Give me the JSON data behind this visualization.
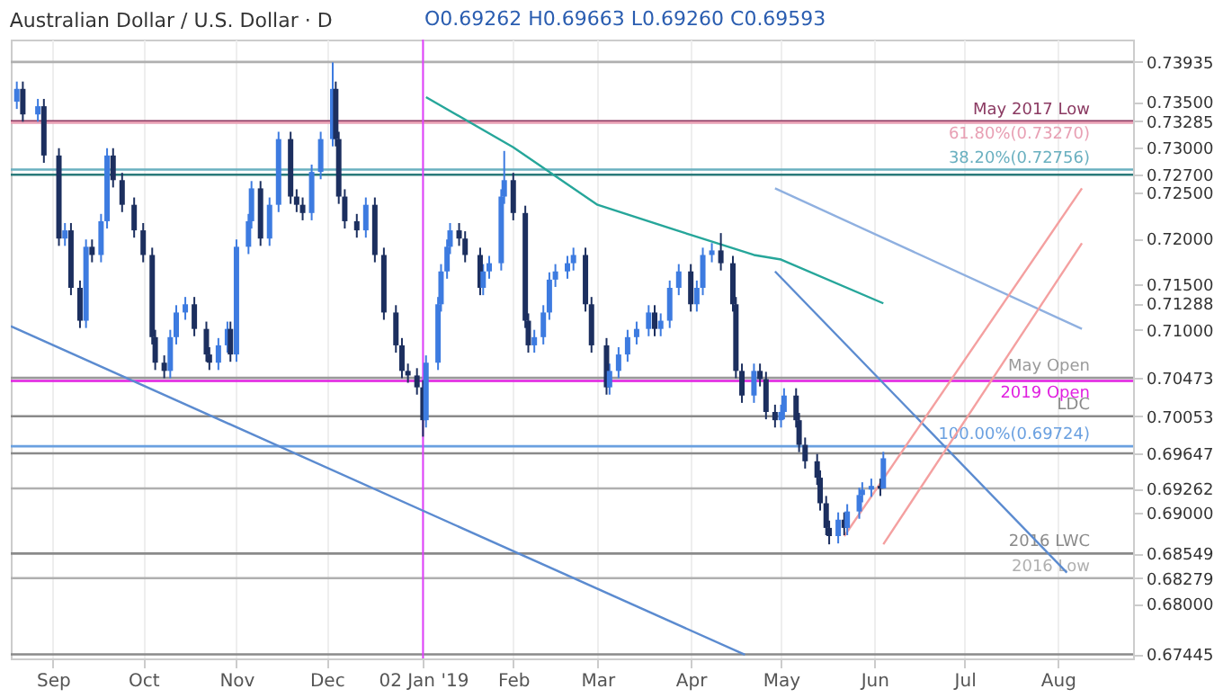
{
  "chart_data": {
    "type": "candlestick",
    "title": "Australian Dollar / U.S. Dollar · D",
    "annotations": [
      "O0.69262 H0.69663 L0.69260 C0.69593"
    ],
    "xlim": [
      "2018-08-18",
      "2019-08-26"
    ],
    "xticks": [
      {
        "value": "2018-09-01",
        "label": "Sep"
      },
      {
        "value": "2018-10-01",
        "label": "Oct"
      },
      {
        "value": "2018-11-01",
        "label": "Nov"
      },
      {
        "value": "2018-12-01",
        "label": "Dec"
      },
      {
        "value": "2019-01-02",
        "label": "02 Jan '19"
      },
      {
        "value": "2019-02-01",
        "label": "Feb"
      },
      {
        "value": "2019-03-01",
        "label": "Mar"
      },
      {
        "value": "2019-04-01",
        "label": "Apr"
      },
      {
        "value": "2019-05-01",
        "label": "May"
      },
      {
        "value": "2019-06-01",
        "label": "Jun"
      },
      {
        "value": "2019-07-01",
        "label": "Jul"
      },
      {
        "value": "2019-08-01",
        "label": "Aug"
      }
    ],
    "ylim": [
      0.674,
      0.7418
    ],
    "yticks": [
      {
        "value": 0.73935,
        "label": "0.73935"
      },
      {
        "value": 0.735,
        "label": "0.73500"
      },
      {
        "value": 0.73285,
        "label": "0.73285"
      },
      {
        "value": 0.73,
        "label": "0.73000"
      },
      {
        "value": 0.727,
        "label": "0.72700"
      },
      {
        "value": 0.725,
        "label": "0.72500"
      },
      {
        "value": 0.72,
        "label": "0.72000"
      },
      {
        "value": 0.715,
        "label": "0.71500"
      },
      {
        "value": 0.71288,
        "label": "0.71288"
      },
      {
        "value": 0.71,
        "label": "0.71000"
      },
      {
        "value": 0.70473,
        "label": "0.70473"
      },
      {
        "value": 0.70053,
        "label": "0.70053"
      },
      {
        "value": 0.69647,
        "label": "0.69647"
      },
      {
        "value": 0.69262,
        "label": "0.69262"
      },
      {
        "value": 0.69,
        "label": "0.69000"
      },
      {
        "value": 0.68549,
        "label": "0.68549"
      },
      {
        "value": 0.68279,
        "label": "0.68279"
      },
      {
        "value": 0.68,
        "label": "0.68000"
      },
      {
        "value": 0.67445,
        "label": "0.67445"
      }
    ],
    "grid": "x",
    "x": [
      "2018-08-20",
      "2018-08-22",
      "2018-08-27",
      "2018-08-29",
      "2018-09-03",
      "2018-09-05",
      "2018-09-07",
      "2018-09-10",
      "2018-09-12",
      "2018-09-14",
      "2018-09-17",
      "2018-09-19",
      "2018-09-21",
      "2018-09-24",
      "2018-09-28",
      "2018-10-01",
      "2018-10-04",
      "2018-10-05",
      "2018-10-08",
      "2018-10-10",
      "2018-10-12",
      "2018-10-15",
      "2018-10-18",
      "2018-10-22",
      "2018-10-23",
      "2018-10-26",
      "2018-10-29",
      "2018-10-30",
      "2018-11-01",
      "2018-11-05",
      "2018-11-06",
      "2018-11-09",
      "2018-11-12",
      "2018-11-15",
      "2018-11-19",
      "2018-11-21",
      "2018-11-23",
      "2018-11-26",
      "2018-11-29",
      "2018-12-03",
      "2018-12-04",
      "2018-12-05",
      "2018-12-07",
      "2018-12-11",
      "2018-12-14",
      "2018-12-17",
      "2018-12-20",
      "2018-12-24",
      "2018-12-26",
      "2018-12-28",
      "2018-12-31",
      "2019-01-02",
      "2019-01-03",
      "2019-01-07",
      "2019-01-08",
      "2019-01-10",
      "2019-01-11",
      "2019-01-14",
      "2019-01-16",
      "2019-01-21",
      "2019-01-22",
      "2019-01-24",
      "2019-01-28",
      "2019-01-29",
      "2019-02-01",
      "2019-02-05",
      "2019-02-06",
      "2019-02-08",
      "2019-02-11",
      "2019-02-13",
      "2019-02-15",
      "2019-02-19",
      "2019-02-21",
      "2019-02-25",
      "2019-02-27",
      "2019-03-04",
      "2019-03-05",
      "2019-03-08",
      "2019-03-11",
      "2019-03-14",
      "2019-03-18",
      "2019-03-20",
      "2019-03-22",
      "2019-03-25",
      "2019-03-28",
      "2019-04-01",
      "2019-04-03",
      "2019-04-05",
      "2019-04-08",
      "2019-04-11",
      "2019-04-15",
      "2019-04-16",
      "2019-04-18",
      "2019-04-22",
      "2019-04-24",
      "2019-04-26",
      "2019-04-29",
      "2019-05-01",
      "2019-05-02",
      "2019-05-06",
      "2019-05-07",
      "2019-05-09",
      "2019-05-13",
      "2019-05-14",
      "2019-05-16",
      "2019-05-17",
      "2019-05-20",
      "2019-05-22",
      "2019-05-23",
      "2019-05-27",
      "2019-05-28",
      "2019-05-31",
      "2019-06-03",
      "2019-06-04"
    ],
    "ohlc": [
      [
        0.735,
        0.7372,
        0.7342,
        0.7364
      ],
      [
        0.7364,
        0.7372,
        0.7328,
        0.7336
      ],
      [
        0.7336,
        0.7353,
        0.7328,
        0.7345
      ],
      [
        0.7345,
        0.7353,
        0.7283,
        0.7291
      ],
      [
        0.7291,
        0.7299,
        0.7192,
        0.72
      ],
      [
        0.72,
        0.7217,
        0.7192,
        0.7209
      ],
      [
        0.7209,
        0.7217,
        0.7138,
        0.7146
      ],
      [
        0.7146,
        0.7154,
        0.7102,
        0.711
      ],
      [
        0.711,
        0.7199,
        0.7102,
        0.7191
      ],
      [
        0.7191,
        0.7199,
        0.7174,
        0.7182
      ],
      [
        0.7182,
        0.7227,
        0.7174,
        0.7219
      ],
      [
        0.7219,
        0.7299,
        0.7211,
        0.7291
      ],
      [
        0.7291,
        0.7299,
        0.7256,
        0.7264
      ],
      [
        0.7264,
        0.7272,
        0.7229,
        0.7237
      ],
      [
        0.7237,
        0.7245,
        0.7201,
        0.7209
      ],
      [
        0.7209,
        0.7217,
        0.7174,
        0.7182
      ],
      [
        0.7182,
        0.719,
        0.7084,
        0.7092
      ],
      [
        0.7092,
        0.71,
        0.7056,
        0.7064
      ],
      [
        0.7064,
        0.7072,
        0.7047,
        0.7055
      ],
      [
        0.7055,
        0.71,
        0.7047,
        0.7092
      ],
      [
        0.7092,
        0.7127,
        0.7084,
        0.7119
      ],
      [
        0.7119,
        0.7136,
        0.7111,
        0.7128
      ],
      [
        0.7128,
        0.7136,
        0.7093,
        0.7101
      ],
      [
        0.7101,
        0.7109,
        0.7065,
        0.7073
      ],
      [
        0.7073,
        0.7081,
        0.7056,
        0.7064
      ],
      [
        0.7064,
        0.7091,
        0.7056,
        0.7083
      ],
      [
        0.7083,
        0.7109,
        0.7075,
        0.7101
      ],
      [
        0.7101,
        0.7109,
        0.7065,
        0.7073
      ],
      [
        0.7073,
        0.7199,
        0.7065,
        0.7191
      ],
      [
        0.7191,
        0.7227,
        0.7183,
        0.7219
      ],
      [
        0.7219,
        0.7263,
        0.7211,
        0.7255
      ],
      [
        0.7255,
        0.7263,
        0.7192,
        0.72
      ],
      [
        0.72,
        0.7245,
        0.7192,
        0.7237
      ],
      [
        0.7237,
        0.7317,
        0.7229,
        0.7309
      ],
      [
        0.7309,
        0.7317,
        0.7238,
        0.7246
      ],
      [
        0.7246,
        0.7254,
        0.7229,
        0.7237
      ],
      [
        0.7237,
        0.7245,
        0.722,
        0.7228
      ],
      [
        0.7228,
        0.7281,
        0.722,
        0.7273
      ],
      [
        0.7273,
        0.7317,
        0.7265,
        0.7309
      ],
      [
        0.7309,
        0.7393,
        0.7301,
        0.7364
      ],
      [
        0.7364,
        0.7372,
        0.7301,
        0.7309
      ],
      [
        0.7309,
        0.7317,
        0.7238,
        0.7246
      ],
      [
        0.7246,
        0.7254,
        0.7211,
        0.7219
      ],
      [
        0.7219,
        0.7227,
        0.7201,
        0.7209
      ],
      [
        0.7209,
        0.7245,
        0.7201,
        0.7237
      ],
      [
        0.7237,
        0.7245,
        0.7174,
        0.7182
      ],
      [
        0.7182,
        0.719,
        0.7111,
        0.7119
      ],
      [
        0.7119,
        0.7127,
        0.7075,
        0.7083
      ],
      [
        0.7083,
        0.7091,
        0.7047,
        0.7055
      ],
      [
        0.7055,
        0.7063,
        0.7042,
        0.705
      ],
      [
        0.705,
        0.7058,
        0.7029,
        0.7037
      ],
      [
        0.7037,
        0.7045,
        0.6983,
        0.7001
      ],
      [
        0.7001,
        0.7072,
        0.6993,
        0.7064
      ],
      [
        0.7064,
        0.7136,
        0.7056,
        0.7128
      ],
      [
        0.7128,
        0.7172,
        0.712,
        0.7164
      ],
      [
        0.7164,
        0.7199,
        0.7156,
        0.7191
      ],
      [
        0.7191,
        0.7217,
        0.7183,
        0.7209
      ],
      [
        0.7209,
        0.7217,
        0.7192,
        0.72
      ],
      [
        0.72,
        0.7208,
        0.7174,
        0.7182
      ],
      [
        0.7182,
        0.719,
        0.7138,
        0.7146
      ],
      [
        0.7146,
        0.7172,
        0.7138,
        0.7164
      ],
      [
        0.7164,
        0.7181,
        0.7156,
        0.7173
      ],
      [
        0.7173,
        0.7254,
        0.7165,
        0.7246
      ],
      [
        0.7246,
        0.7296,
        0.7238,
        0.7264
      ],
      [
        0.7264,
        0.7272,
        0.722,
        0.7228
      ],
      [
        0.7228,
        0.7236,
        0.7102,
        0.711
      ],
      [
        0.711,
        0.7118,
        0.7075,
        0.7083
      ],
      [
        0.7083,
        0.71,
        0.7075,
        0.7092
      ],
      [
        0.7092,
        0.7127,
        0.7084,
        0.7119
      ],
      [
        0.7119,
        0.7163,
        0.7111,
        0.7155
      ],
      [
        0.7155,
        0.7172,
        0.7147,
        0.7164
      ],
      [
        0.7164,
        0.7181,
        0.7156,
        0.7173
      ],
      [
        0.7173,
        0.719,
        0.7165,
        0.7182
      ],
      [
        0.7182,
        0.719,
        0.712,
        0.7128
      ],
      [
        0.7128,
        0.7136,
        0.7075,
        0.7083
      ],
      [
        0.7083,
        0.7091,
        0.7029,
        0.7037
      ],
      [
        0.7037,
        0.7063,
        0.7029,
        0.7055
      ],
      [
        0.7055,
        0.7081,
        0.7047,
        0.7073
      ],
      [
        0.7073,
        0.71,
        0.7065,
        0.7092
      ],
      [
        0.7092,
        0.7109,
        0.7084,
        0.7101
      ],
      [
        0.7101,
        0.7127,
        0.7093,
        0.7119
      ],
      [
        0.7119,
        0.7127,
        0.7093,
        0.7101
      ],
      [
        0.7101,
        0.7118,
        0.7093,
        0.711
      ],
      [
        0.711,
        0.7154,
        0.7102,
        0.7146
      ],
      [
        0.7146,
        0.7172,
        0.7138,
        0.7164
      ],
      [
        0.7164,
        0.7172,
        0.712,
        0.7128
      ],
      [
        0.7128,
        0.7154,
        0.712,
        0.7146
      ],
      [
        0.7146,
        0.719,
        0.7138,
        0.7182
      ],
      [
        0.7182,
        0.7195,
        0.7174,
        0.7187
      ],
      [
        0.7187,
        0.7206,
        0.7165,
        0.7173
      ],
      [
        0.7173,
        0.7181,
        0.712,
        0.7128
      ],
      [
        0.7128,
        0.7136,
        0.7047,
        0.7055
      ],
      [
        0.7055,
        0.7063,
        0.702,
        0.7028
      ],
      [
        0.7028,
        0.7063,
        0.702,
        0.7055
      ],
      [
        0.7055,
        0.7063,
        0.7038,
        0.7046
      ],
      [
        0.7046,
        0.7054,
        0.7002,
        0.701
      ],
      [
        0.701,
        0.7018,
        0.6993,
        0.7001
      ],
      [
        0.7001,
        0.7018,
        0.6993,
        0.701
      ],
      [
        0.701,
        0.7036,
        0.7002,
        0.7028
      ],
      [
        0.7028,
        0.7036,
        0.6993,
        0.7001
      ],
      [
        0.7001,
        0.7009,
        0.6966,
        0.6974
      ],
      [
        0.6974,
        0.6982,
        0.6948,
        0.6956
      ],
      [
        0.6956,
        0.6964,
        0.693,
        0.6938
      ],
      [
        0.6938,
        0.6946,
        0.6902,
        0.691
      ],
      [
        0.691,
        0.6918,
        0.6875,
        0.6883
      ],
      [
        0.6883,
        0.6891,
        0.6865,
        0.6874
      ],
      [
        0.6874,
        0.69,
        0.6866,
        0.6892
      ],
      [
        0.6892,
        0.69,
        0.6875,
        0.6883
      ],
      [
        0.6883,
        0.6909,
        0.6875,
        0.6901
      ],
      [
        0.6901,
        0.6927,
        0.6893,
        0.6919
      ],
      [
        0.6919,
        0.6933,
        0.6911,
        0.6925
      ],
      [
        0.6925,
        0.6937,
        0.6917,
        0.6929
      ],
      [
        0.6929,
        0.6937,
        0.6918,
        0.6926
      ],
      [
        0.69262,
        0.69663,
        0.6926,
        0.69593
      ]
    ],
    "series": [
      {
        "type": "line",
        "color": "#26a69a",
        "x": [
          "2019-01-03",
          "2019-02-01",
          "2019-03-01",
          "2019-04-01",
          "2019-04-22",
          "2019-05-01",
          "2019-06-04"
        ],
        "values": [
          0.7355,
          0.73,
          0.7237,
          0.7204,
          0.7182,
          0.7177,
          0.7129
        ]
      },
      {
        "type": "line",
        "color": "#5b8bd0",
        "x": [
          "2018-08-18",
          "2019-04-19"
        ],
        "values": [
          0.7104,
          0.6744
        ]
      },
      {
        "type": "line",
        "color": "#5b8bd0",
        "x": [
          "2019-04-29",
          "2019-08-04"
        ],
        "values": [
          0.7164,
          0.6834
        ]
      },
      {
        "type": "line",
        "color": "#8fb0e0",
        "x": [
          "2019-04-29",
          "2019-08-09"
        ],
        "values": [
          0.7255,
          0.7101
        ]
      },
      {
        "type": "line",
        "color": "#f4a0a0",
        "x": [
          "2019-05-22",
          "2019-08-09"
        ],
        "values": [
          0.6874,
          0.7255
        ]
      },
      {
        "type": "line",
        "color": "#f4a0a0",
        "x": [
          "2019-06-04",
          "2019-08-09"
        ],
        "values": [
          0.6865,
          0.7195
        ]
      }
    ],
    "ref_lines": [
      {
        "axis": "y",
        "value": 0.73935,
        "color": "#b0b0b0"
      },
      {
        "axis": "y",
        "value": 0.73285,
        "label": "May 2017 Low",
        "color": "#8b3a62"
      },
      {
        "axis": "y",
        "value": 0.7327,
        "label": "61.80%(0.73270)",
        "color": "#e8a0b4"
      },
      {
        "axis": "y",
        "value": 0.72756,
        "label": "38.20%(0.72756)",
        "color": "#6ab0c0"
      },
      {
        "axis": "y",
        "value": 0.727,
        "color": "#2a7a7a"
      },
      {
        "axis": "y",
        "value": 0.70473,
        "label": "May Open",
        "color": "#9a9a9a"
      },
      {
        "axis": "y",
        "value": 0.7044,
        "label": "2019 Open",
        "color": "#e020e0"
      },
      {
        "axis": "y",
        "value": 0.70053,
        "label": "LDC",
        "color": "#8a8a8a"
      },
      {
        "axis": "y",
        "value": 0.69724,
        "label": "100.00%(0.69724)",
        "color": "#6aa0e0"
      },
      {
        "axis": "y",
        "value": 0.69647,
        "color": "#8a8a8a"
      },
      {
        "axis": "y",
        "value": 0.69262,
        "color": "#b0b0b0"
      },
      {
        "axis": "y",
        "value": 0.68549,
        "label": "2016 LWC",
        "color": "#8a8a8a"
      },
      {
        "axis": "y",
        "value": 0.68279,
        "label": "2016 Low",
        "color": "#b0b0b0"
      },
      {
        "axis": "y",
        "value": 0.67445,
        "color": "#8a8a8a"
      },
      {
        "axis": "x",
        "value": "2019-01-02",
        "color": "#e040fb"
      }
    ]
  }
}
